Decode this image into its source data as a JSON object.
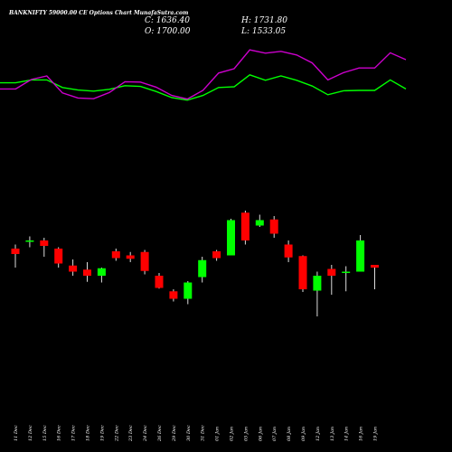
{
  "header": {
    "title": "BANKNIFTY 59000.00 CE Options  Chart MunafaSutra.com",
    "open_label": "O:",
    "open": "1700.00",
    "high_label": "H:",
    "high": "1731.80",
    "low_label": "L:",
    "low": "1533.05",
    "close_label": "C:",
    "close": "1636.40"
  },
  "chart_data": {
    "type": "candlestick",
    "title": "BANKNIFTY 59000.00 CE Options  Chart MunafaSutra.com",
    "x_labels": [
      "11 Dec",
      "12 Dec",
      "15 Dec",
      "16 Dec",
      "17 Dec",
      "18 Dec",
      "19 Dec",
      "22 Dec",
      "23 Dec",
      "24 Dec",
      "26 Dec",
      "29 Dec",
      "30 Dec",
      "31 Dec",
      "01 Jan",
      "02 Jan",
      "05 Jan",
      "06 Jan",
      "07 Jan",
      "08 Jan",
      "09 Jan",
      "12 Jan",
      "13 Jan",
      "14 Jan",
      "16 Jan",
      "19 Jan"
    ],
    "candles": [
      {
        "open": 1700,
        "high": 1730,
        "low": 1560,
        "close": 1660
      },
      {
        "open": 1755,
        "high": 1790,
        "low": 1710,
        "close": 1760
      },
      {
        "open": 1760,
        "high": 1780,
        "low": 1640,
        "close": 1720
      },
      {
        "open": 1700,
        "high": 1710,
        "low": 1560,
        "close": 1590
      },
      {
        "open": 1575,
        "high": 1620,
        "low": 1500,
        "close": 1530
      },
      {
        "open": 1545,
        "high": 1600,
        "low": 1455,
        "close": 1500
      },
      {
        "open": 1500,
        "high": 1560,
        "low": 1450,
        "close": 1555
      },
      {
        "open": 1680,
        "high": 1700,
        "low": 1610,
        "close": 1630
      },
      {
        "open": 1650,
        "high": 1675,
        "low": 1600,
        "close": 1625
      },
      {
        "open": 1675,
        "high": 1690,
        "low": 1510,
        "close": 1535
      },
      {
        "open": 1500,
        "high": 1520,
        "low": 1405,
        "close": 1410
      },
      {
        "open": 1385,
        "high": 1400,
        "low": 1310,
        "close": 1330
      },
      {
        "open": 1330,
        "high": 1460,
        "low": 1290,
        "close": 1450
      },
      {
        "open": 1490,
        "high": 1640,
        "low": 1450,
        "close": 1615
      },
      {
        "open": 1680,
        "high": 1690,
        "low": 1610,
        "close": 1630
      },
      {
        "open": 1650,
        "high": 1920,
        "low": 1650,
        "close": 1910
      },
      {
        "open": 1965,
        "high": 1980,
        "low": 1730,
        "close": 1760
      },
      {
        "open": 1870,
        "high": 1950,
        "low": 1860,
        "close": 1910
      },
      {
        "open": 1915,
        "high": 1940,
        "low": 1780,
        "close": 1810
      },
      {
        "open": 1730,
        "high": 1760,
        "low": 1600,
        "close": 1635
      },
      {
        "open": 1645,
        "high": 1650,
        "low": 1380,
        "close": 1400
      },
      {
        "open": 1390,
        "high": 1530,
        "low": 1200,
        "close": 1500
      },
      {
        "open": 1550,
        "high": 1580,
        "low": 1360,
        "close": 1500
      },
      {
        "open": 1530,
        "high": 1570,
        "low": 1385,
        "close": 1530
      },
      {
        "open": 1530,
        "high": 1800,
        "low": 1530,
        "close": 1760
      },
      {
        "open": 1580,
        "high": 1580,
        "low": 1400,
        "close": 1560
      }
    ],
    "upper_line": [
      0.705,
      0.705,
      0.745,
      0.745,
      0.64,
      0.605,
      0.59,
      0.615,
      0.665,
      0.655,
      0.585,
      0.5,
      0.465,
      0.53,
      0.64,
      0.65,
      0.815,
      0.74,
      0.8,
      0.74,
      0.66,
      0.54,
      0.595,
      0.6,
      0.6,
      0.745,
      0.62
    ],
    "lower_line": [
      0.62,
      0.62,
      0.75,
      0.8,
      0.565,
      0.495,
      0.485,
      0.57,
      0.72,
      0.715,
      0.645,
      0.53,
      0.48,
      0.6,
      0.84,
      0.9,
      1.16,
      1.115,
      1.14,
      1.09,
      0.98,
      0.745,
      0.845,
      0.91,
      0.91,
      1.12,
      1.025
    ],
    "line_colors": {
      "upper": "#00ff00",
      "lower": "#cc00cc"
    },
    "candle_colors": {
      "up": "#00ff00",
      "down": "#ff0000"
    },
    "grid": false
  }
}
